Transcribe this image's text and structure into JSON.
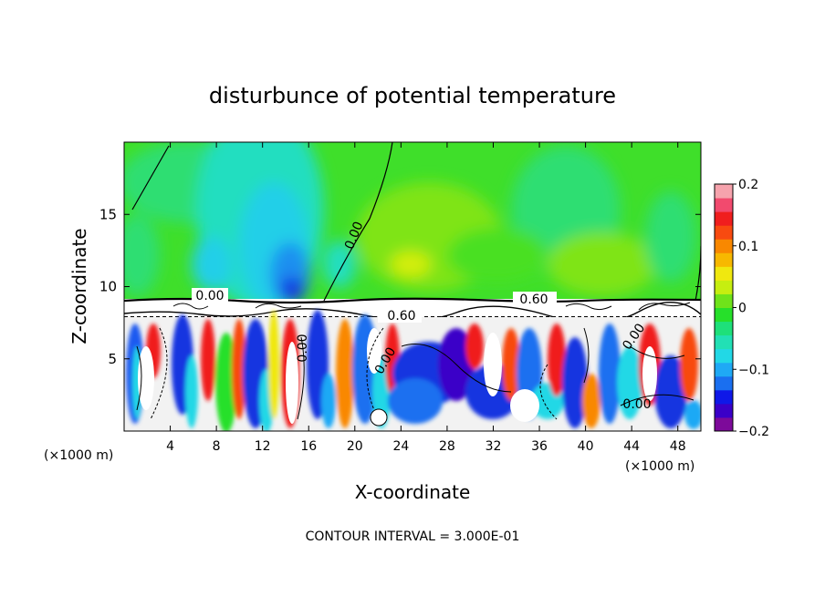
{
  "chart_data": {
    "type": "heatmap",
    "title": "disturbunce of potential temperature",
    "xlabel": "X-coordinate",
    "ylabel": "Z-coordinate",
    "x_unit": "(×1000 m)",
    "z_unit": "(×1000 m)",
    "xlim": [
      0,
      50
    ],
    "ylim": [
      0,
      20
    ],
    "x_ticks": [
      4,
      8,
      12,
      16,
      20,
      24,
      28,
      32,
      36,
      40,
      44,
      48
    ],
    "y_ticks": [
      5,
      10,
      15
    ],
    "colorbar": {
      "range": [
        -0.2,
        0.2
      ],
      "ticks": [
        -0.2,
        -0.1,
        0,
        0.1,
        0.2
      ],
      "tick_labels": [
        "−0.2",
        "−0.1",
        "0",
        "0.1",
        "0.2"
      ],
      "colors": [
        "#7d0a9a",
        "#3a00c8",
        "#0f18e8",
        "#1a6ff0",
        "#1fa9f5",
        "#22d8e6",
        "#22e0b5",
        "#1ee07a",
        "#26e02a",
        "#6fe31a",
        "#c6ee10",
        "#f0e80f",
        "#f7b800",
        "#f98800",
        "#f84a10",
        "#f01e1e",
        "#f24a6e",
        "#f6a3ad"
      ]
    },
    "contour_labels": [
      "0.00",
      "0.00",
      "0.60",
      "0.60",
      "0.00",
      "0.00",
      "0.00",
      "0.00"
    ],
    "footer": "CONTOUR INTERVAL = 3.000E-01"
  }
}
